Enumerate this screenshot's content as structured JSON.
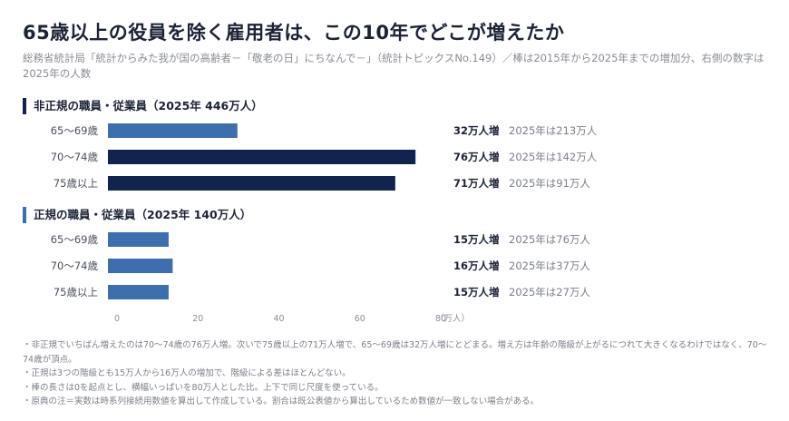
{
  "header": {
    "title": "65歳以上の役員を除く雇用者は、この10年でどこが増えたか",
    "subtitle": "総務省統計局「統計からみた我が国の高齢者－「敬老の日」にちなんで－」（統計トピックスNo.149）／棒は2015年から2025年までの増加分、右側の数字は2025年の人数"
  },
  "colors": {
    "accent_dark": "#13234f",
    "accent_light": "#3d6fae",
    "text": "#1c2336",
    "muted": "#7c808a"
  },
  "chart_data": [
    {
      "type": "bar",
      "orientation": "horizontal",
      "title": "非正規の職員・従業員（2025年 446万人）",
      "categories": [
        "65〜69歳",
        "70〜74歳",
        "75歳以上"
      ],
      "values": [
        32,
        76,
        71
      ],
      "value_labels": [
        "32万人増",
        "76万人増",
        "71万人増"
      ],
      "annotations": [
        "2025年は213万人",
        "2025年は142万人",
        "2025年は91万人"
      ],
      "highlight": [
        false,
        true,
        true
      ],
      "xlim": [
        0,
        80
      ]
    },
    {
      "type": "bar",
      "orientation": "horizontal",
      "title": "正規の職員・従業員（2025年 140万人）",
      "categories": [
        "65〜69歳",
        "70〜74歳",
        "75歳以上"
      ],
      "values": [
        15,
        16,
        15
      ],
      "value_labels": [
        "15万人増",
        "16万人増",
        "15万人増"
      ],
      "annotations": [
        "2025年は76万人",
        "2025年は37万人",
        "2025年は27万人"
      ],
      "highlight": [
        false,
        false,
        false
      ],
      "xlim": [
        0,
        80
      ]
    }
  ],
  "axis": {
    "ticks": [
      "0",
      "20",
      "40",
      "60",
      "80"
    ],
    "unit": "（万人）"
  },
  "notes": [
    "・非正規でいちばん増えたのは70〜74歳の76万人増。次いで75歳以上の71万人増で、65〜69歳は32万人増にとどまる。増え方は年齢の階級が上がるにつれて大きくなるわけではなく、70〜74歳が頂点。",
    "・正規は3つの階級とも15万人から16万人の増加で、階級による差はほとんどない。",
    "・棒の長さは0を起点とし、横幅いっぱいを80万人とした比。上下で同じ尺度を使っている。",
    "・原典の注＝実数は時系列接続用数値を算出して作成している。割合は既公表値から算出しているため数値が一致しない場合がある。"
  ]
}
